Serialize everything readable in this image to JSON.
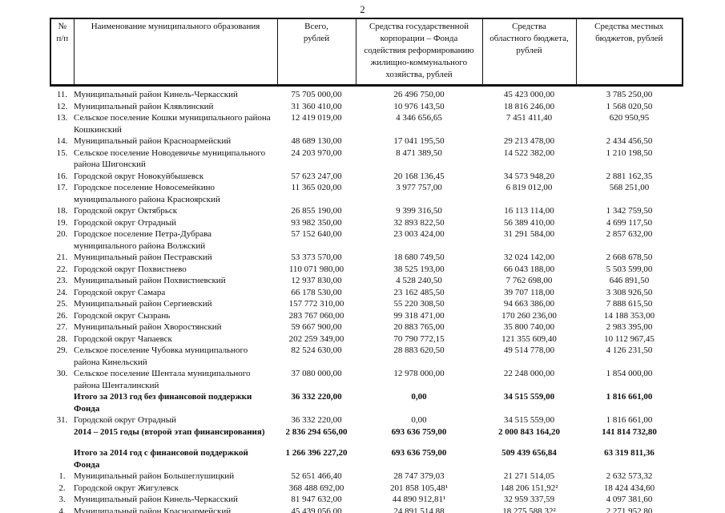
{
  "page": {
    "number": "2"
  },
  "table": {
    "headers": {
      "num": "№\nп/п",
      "name": "Наименование муниципального образования",
      "total": "Всего,\nрублей",
      "fund": "Средства государственной\nкорпорации – Фонда\nсодействия реформированию\nжилищно-коммунального\nхозяйства, рублей",
      "regional": "Средства\nобластного бюджета,\nрублей",
      "local": "Средства местных\nбюджетов, рублей"
    },
    "rows": [
      {
        "num": "11.",
        "name": "Муниципальный район Кинель-Черкасский",
        "values": [
          "75 705 000,00",
          "26 496 750,00",
          "45 423 000,00",
          "3 785 250,00"
        ],
        "bold": false,
        "gap_before": false
      },
      {
        "num": "12.",
        "name": "Муниципальный район Клявлинский",
        "values": [
          "31 360 410,00",
          "10 976 143,50",
          "18 816 246,00",
          "1 568 020,50"
        ],
        "bold": false,
        "gap_before": false
      },
      {
        "num": "13.",
        "name": "Сельское поселение Кошки муниципального района\nКошкинский",
        "values": [
          "12 419 019,00",
          "4 346 656,65",
          "7 451 411,40",
          "620 950,95"
        ],
        "bold": false,
        "gap_before": false
      },
      {
        "num": "14.",
        "name": "Муниципальный район Красноармейский",
        "values": [
          "48 689 130,00",
          "17 041 195,50",
          "29 213 478,00",
          "2 434 456,50"
        ],
        "bold": false,
        "gap_before": false
      },
      {
        "num": "15.",
        "name": "Сельское поселение Новодевичье муниципального\nрайона Шигонский",
        "values": [
          "24 203 970,00",
          "8 471 389,50",
          "14 522 382,00",
          "1 210 198,50"
        ],
        "bold": false,
        "gap_before": false
      },
      {
        "num": "16.",
        "name": "Городской округ Новокуйбышевск",
        "values": [
          "57 623 247,00",
          "20 168 136,45",
          "34 573 948,20",
          "2 881 162,35"
        ],
        "bold": false,
        "gap_before": false
      },
      {
        "num": "17.",
        "name": "Городское поселение Новосемейкино\nмуниципального района Красноярский",
        "values": [
          "11 365 020,00",
          "3 977 757,00",
          "6 819 012,00",
          "568 251,00"
        ],
        "bold": false,
        "gap_before": false
      },
      {
        "num": "18.",
        "name": "Городской округ Октябрьск",
        "values": [
          "26 855 190,00",
          "9 399 316,50",
          "16 113 114,00",
          "1 342 759,50"
        ],
        "bold": false,
        "gap_before": false
      },
      {
        "num": "19.",
        "name": "Городской округ Отрадный",
        "values": [
          "93 982 350,00",
          "32 893 822,50",
          "56 389 410,00",
          "4 699 117,50"
        ],
        "bold": false,
        "gap_before": false
      },
      {
        "num": "20.",
        "name": "Городское поселение Петра-Дубрава\nмуниципального района Волжский",
        "values": [
          "57 152 640,00",
          "23 003 424,00",
          "31 291 584,00",
          "2 857 632,00"
        ],
        "bold": false,
        "gap_before": false
      },
      {
        "num": "21.",
        "name": "Муниципальный район Пестравский",
        "values": [
          "53 373 570,00",
          "18 680 749,50",
          "32 024 142,00",
          "2 668 678,50"
        ],
        "bold": false,
        "gap_before": false
      },
      {
        "num": "22.",
        "name": "Городской округ Похвистнево",
        "values": [
          "110 071 980,00",
          "38 525 193,00",
          "66 043 188,00",
          "5 503 599,00"
        ],
        "bold": false,
        "gap_before": false
      },
      {
        "num": "23.",
        "name": "Муниципальный район Похвистневский",
        "values": [
          "12 937 830,00",
          "4 528 240,50",
          "7 762 698,00",
          "646 891,50"
        ],
        "bold": false,
        "gap_before": false
      },
      {
        "num": "24.",
        "name": "Городской округ Самара",
        "values": [
          "66 178 530,00",
          "23 162 485,50",
          "39 707 118,00",
          "3 308 926,50"
        ],
        "bold": false,
        "gap_before": false
      },
      {
        "num": "25.",
        "name": "Муниципальный район Сергиевский",
        "values": [
          "157 772 310,00",
          "55 220 308,50",
          "94 663 386,00",
          "7 888 615,50"
        ],
        "bold": false,
        "gap_before": false
      },
      {
        "num": "26.",
        "name": "Городской округ Сызрань",
        "values": [
          "283 767 060,00",
          "99 318 471,00",
          "170 260 236,00",
          "14 188 353,00"
        ],
        "bold": false,
        "gap_before": false
      },
      {
        "num": "27.",
        "name": "Муниципальный район Хворостянский",
        "values": [
          "59 667 900,00",
          "20 883 765,00",
          "35 800 740,00",
          "2 983 395,00"
        ],
        "bold": false,
        "gap_before": false
      },
      {
        "num": "28.",
        "name": "Городской округ Чапаевск",
        "values": [
          "202 259 349,00",
          "70 790 772,15",
          "121 355 609,40",
          "10 112 967,45"
        ],
        "bold": false,
        "gap_before": false
      },
      {
        "num": "29.",
        "name": "Сельское поселение Чубовка муниципального\nрайона Кинельский",
        "values": [
          "82 524 630,00",
          "28 883 620,50",
          "49 514 778,00",
          "4 126 231,50"
        ],
        "bold": false,
        "gap_before": false
      },
      {
        "num": "30.",
        "name": "Сельское поселение Шентала муниципального\nрайона Шенталинский",
        "values": [
          "37 080 000,00",
          "12 978 000,00",
          "22 248 000,00",
          "1 854 000,00"
        ],
        "bold": false,
        "gap_before": false
      },
      {
        "num": "",
        "name": "Итого за 2013 год без финансовой поддержки\nФонда",
        "values": [
          "36 332 220,00",
          "0,00",
          "34 515 559,00",
          "1 816 661,00"
        ],
        "bold": true,
        "gap_before": false
      },
      {
        "num": "31.",
        "name": "Городской округ Отрадный",
        "values": [
          "36 332 220,00",
          "0,00",
          "34 515 559,00",
          "1 816 661,00"
        ],
        "bold": false,
        "gap_before": false
      },
      {
        "num": "",
        "name": "2014 – 2015 годы (второй этап финансирования)",
        "values": [
          "2 836 294 656,00",
          "693 636 759,00",
          "2 000 843 164,20",
          "141 814 732,80"
        ],
        "bold": true,
        "gap_before": false
      },
      {
        "num": "",
        "name": "Итого за 2014 год с финансовой поддержкой\nФонда",
        "values": [
          "1 266 396 227,20",
          "693 636 759,00",
          "509 439 656,84",
          "63 319 811,36"
        ],
        "bold": true,
        "gap_before": true
      },
      {
        "num": "1.",
        "name": "Муниципальный район Большеглушицкий",
        "values": [
          "52 651 466,40",
          "28 747 379,03",
          "21 271 514,05",
          "2 632 573,32"
        ],
        "bold": false,
        "gap_before": false
      },
      {
        "num": "2.",
        "name": "Городской округ Жигулевск",
        "values": [
          "368 488 692,00",
          "201 858 105,48¹",
          "148 206 151,92²",
          "18 424 434,60"
        ],
        "bold": false,
        "gap_before": false
      },
      {
        "num": "3.",
        "name": "Муниципальный район Кинель-Черкасский",
        "values": [
          "81 947 632,00",
          "44 890 912,81¹",
          "32 959 337,59",
          "4 097 381,60"
        ],
        "bold": false,
        "gap_before": false
      },
      {
        "num": "4.",
        "name": "Муниципальный район Красноармейский",
        "values": [
          "45 439 056,00",
          "24 891 514,88",
          "18 275 588,32²",
          "2 271 952,80"
        ],
        "bold": false,
        "gap_before": false
      }
    ]
  }
}
